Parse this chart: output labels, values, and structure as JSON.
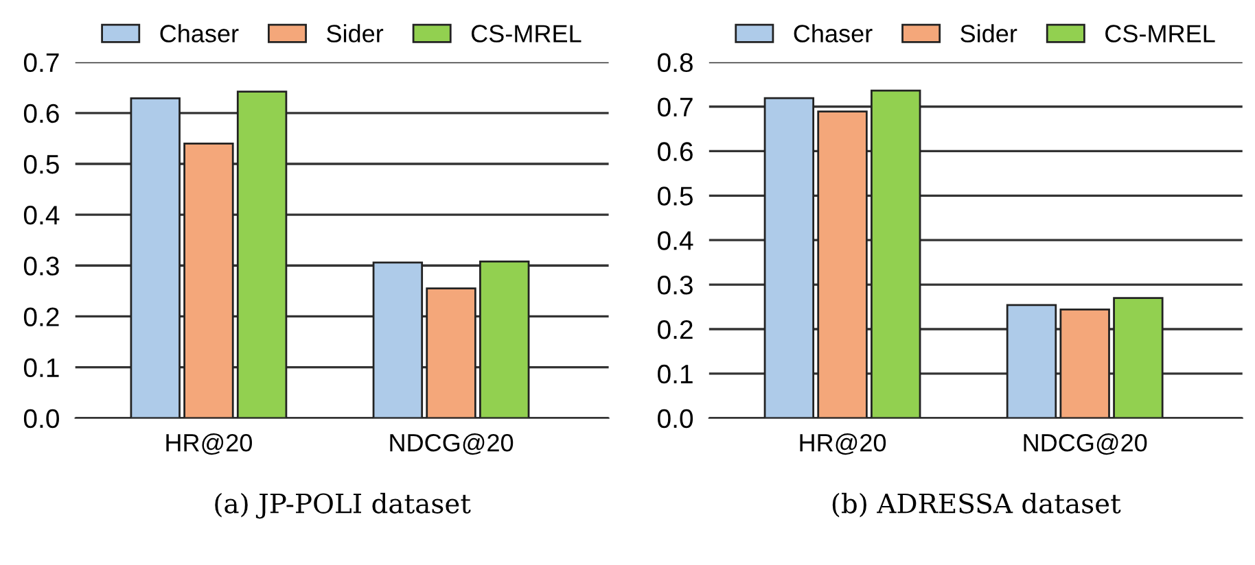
{
  "chart_data": [
    {
      "type": "bar",
      "title": "(a) JP-POLI dataset",
      "categories": [
        "HR@20",
        "NDCG@20"
      ],
      "series": [
        {
          "name": "Chaser",
          "color": "#aecbe9",
          "values": [
            0.629,
            0.306
          ]
        },
        {
          "name": "Sider",
          "color": "#f4a77a",
          "values": [
            0.54,
            0.255
          ]
        },
        {
          "name": "CS-MREL",
          "color": "#92d050",
          "values": [
            0.642,
            0.308
          ]
        }
      ],
      "ylim": [
        0,
        0.7
      ],
      "yticks": [
        {
          "value": 0,
          "label": "0.0"
        },
        0.1,
        0.2,
        0.3,
        0.4,
        0.5,
        0.6,
        0.7
      ],
      "grid": "y",
      "legend": "top"
    },
    {
      "type": "bar",
      "title": "(b) ADRESSA dataset",
      "categories": [
        "HR@20",
        "NDCG@20"
      ],
      "series": [
        {
          "name": "Chaser",
          "color": "#aecbe9",
          "values": [
            0.719,
            0.254
          ]
        },
        {
          "name": "Sider",
          "color": "#f4a77a",
          "values": [
            0.689,
            0.244
          ]
        },
        {
          "name": "CS-MREL",
          "color": "#92d050",
          "values": [
            0.736,
            0.27
          ]
        }
      ],
      "ylim": [
        0,
        0.8
      ],
      "yticks": [
        {
          "value": 0,
          "label": "0.0"
        },
        0.1,
        0.2,
        0.3,
        0.4,
        0.5,
        0.6,
        0.7,
        0.8
      ],
      "grid": "y",
      "legend": "top"
    }
  ]
}
